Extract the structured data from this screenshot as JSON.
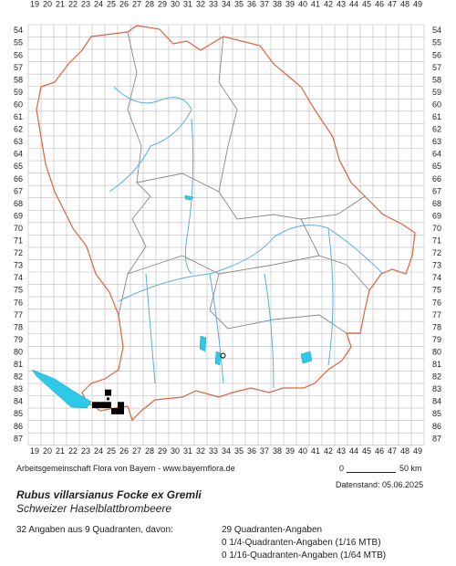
{
  "map": {
    "columns": [
      19,
      20,
      21,
      22,
      23,
      24,
      25,
      26,
      27,
      28,
      29,
      30,
      31,
      32,
      33,
      34,
      35,
      36,
      37,
      38,
      39,
      40,
      41,
      42,
      43,
      44,
      45,
      46,
      47,
      48,
      49
    ],
    "rows": [
      54,
      55,
      56,
      57,
      58,
      59,
      60,
      61,
      62,
      63,
      64,
      65,
      66,
      67,
      68,
      69,
      70,
      71,
      72,
      73,
      74,
      75,
      76,
      77,
      78,
      79,
      80,
      81,
      82,
      83,
      84,
      85,
      86,
      87
    ],
    "records": [
      {
        "x": 24.75,
        "y": 83.25
      },
      {
        "x": 23.75,
        "y": 84.25
      },
      {
        "x": 24.25,
        "y": 84.25
      },
      {
        "x": 24.75,
        "y": 84.25
      },
      {
        "x": 25.75,
        "y": 84.25
      },
      {
        "x": 25.25,
        "y": 84.75
      },
      {
        "x": 25.75,
        "y": 84.75
      }
    ],
    "small_records": [
      {
        "x": 24.75,
        "y": 83.75
      }
    ],
    "uncertain_records": [
      {
        "x": 33.75,
        "y": 80.25
      }
    ]
  },
  "footer": {
    "credit": "Arbeitsgemeinschaft Flora von Bayern - www.bayernflora.de",
    "scale_start": "0",
    "scale_end": "50 km",
    "date": "Datenstand: 05.06.2025"
  },
  "species": {
    "name": "Rubus villarsianus Focke ex Gremli",
    "common_name": "Schweizer Haselblattbrombeere"
  },
  "summary": {
    "total": "32 Angaben aus 9 Quadranten, davon:",
    "quadrants": "29 Quadranten-Angaben",
    "quarter": "0 1/4-Quadranten-Angaben (1/16 MTB)",
    "sixteenth": "0 1/16-Quadranten-Angaben (1/64 MTB)"
  }
}
